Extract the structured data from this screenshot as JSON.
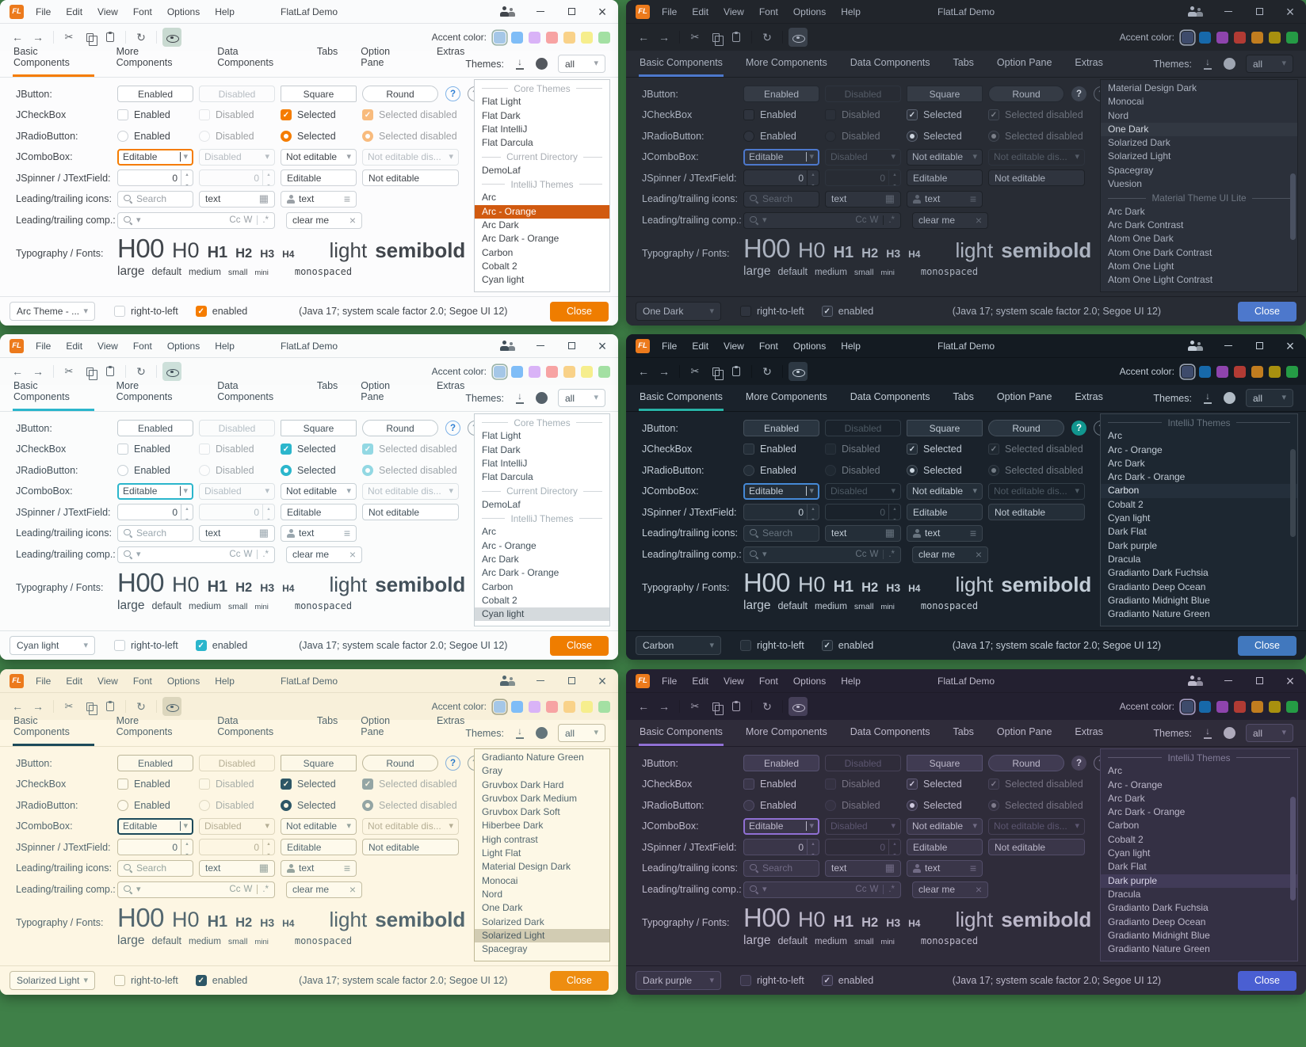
{
  "background": "#3f8048",
  "app": {
    "logo_text": "FL",
    "title": "FlatLaf Demo"
  },
  "menu": [
    "File",
    "Edit",
    "View",
    "Font",
    "Options",
    "Help"
  ],
  "toolbar": {
    "accent_label": "Accent color:"
  },
  "tabs": [
    "Basic Components",
    "More Components",
    "Data Components",
    "Tabs",
    "Option Pane",
    "Extras"
  ],
  "active_tab": "Basic Components",
  "themes_header": {
    "label": "Themes:",
    "filter": "all"
  },
  "form": {
    "labels": [
      "JButton:",
      "JCheckBox",
      "JRadioButton:",
      "JComboBox:",
      "JSpinner / JTextField:",
      "Leading/trailing icons:",
      "Leading/trailing comp.:",
      "Typography / Fonts:"
    ],
    "jbutton": [
      "Enabled",
      "Disabled",
      "Square",
      "Round"
    ],
    "checks": [
      "Enabled",
      "Disabled",
      "Selected",
      "Selected disabled"
    ],
    "combos": [
      "Editable",
      "Disabled",
      "Not editable",
      "Not editable dis..."
    ],
    "spinners": [
      "0",
      "0"
    ],
    "textfields": [
      "Editable",
      "Not editable"
    ],
    "search_placeholder": "Search",
    "icon_text": "text",
    "match_case": "Cc",
    "whole_word": "W",
    "regex": ".*",
    "clear_text": "clear me",
    "typography": {
      "headings": [
        "H00",
        "H0",
        "H1",
        "H2",
        "H3",
        "H4"
      ],
      "light": "light",
      "semibold": "semibold",
      "sizes": [
        "large",
        "default",
        "medium",
        "small",
        "mini"
      ],
      "monospaced": "monospaced"
    }
  },
  "statusbar": {
    "rtl": "right-to-left",
    "enabled": "enabled",
    "info": "(Java 17;  system scale factor 2.0; Segoe UI 12)",
    "close": "Close"
  },
  "swatch_sets": {
    "light": [
      "#a5c7e7",
      "#7fbdf7",
      "#d9b3f7",
      "#f7a3a3",
      "#f9d289",
      "#f6ee8d",
      "#a3e0a3"
    ],
    "dark": [
      "#3e4b6b",
      "#1769aa",
      "#8e44ad",
      "#b23b34",
      "#c17d1f",
      "#a8900f",
      "#259b45"
    ]
  },
  "panels": [
    {
      "name": "Arc - Orange",
      "combo_value": "Arc Theme - ...",
      "variant": "light",
      "colors": {
        "bar": "#fafbfc",
        "content": "#fcfcfd",
        "text": "#41464c",
        "muted": "#9aa0a6",
        "border": "#e2e5e8",
        "field": "#ffffff",
        "fieldb": "#cdd2d7",
        "btnbg": "#ffffff",
        "btnb": "#c6ccd1",
        "accent": "#f57c00",
        "selbg": "#d15a10",
        "seltx": "#ffffff",
        "close": "#ef7d00",
        "closetx": "#ffffff",
        "chkfill": "#f57c00",
        "chkglyph": "#ffffff",
        "chkb": "#f57c00",
        "focus": "#f57c00",
        "h1fg": "#2e7fd4",
        "h1bg": "transparent",
        "h1bd": "#7fb3e8",
        "eyebg": "#c9dad1",
        "disab": "#b6bcc2",
        "disb": "#e0e4e7",
        "listbg": "#ffffff",
        "listbd": "#c8cdd2",
        "sep": "#a9aeb4",
        "thumb": "transparent",
        "swring": "#9ab3a9"
      },
      "list": {
        "selected": "Arc - Orange",
        "scrollbar": false,
        "thumb_top": 0,
        "thumb_height": 0,
        "items": [
          {
            "type": "separator",
            "label": "Core Themes"
          },
          {
            "type": "theme",
            "label": "Flat Light"
          },
          {
            "type": "theme",
            "label": "Flat Dark"
          },
          {
            "type": "theme",
            "label": "Flat IntelliJ"
          },
          {
            "type": "theme",
            "label": "Flat Darcula"
          },
          {
            "type": "separator",
            "label": "Current Directory"
          },
          {
            "type": "theme",
            "label": "DemoLaf"
          },
          {
            "type": "separator",
            "label": "IntelliJ Themes"
          },
          {
            "type": "theme",
            "label": "Arc"
          },
          {
            "type": "theme",
            "label": "Arc - Orange"
          },
          {
            "type": "theme",
            "label": "Arc Dark"
          },
          {
            "type": "theme",
            "label": "Arc Dark - Orange"
          },
          {
            "type": "theme",
            "label": "Carbon"
          },
          {
            "type": "theme",
            "label": "Cobalt 2"
          },
          {
            "type": "theme",
            "label": "Cyan light"
          }
        ]
      }
    },
    {
      "name": "One Dark",
      "combo_value": "One Dark",
      "variant": "dark",
      "colors": {
        "bar": "#21252b",
        "content": "#282c34",
        "text": "#abb2bf",
        "muted": "#5f6672",
        "border": "#1b1e24",
        "field": "#2f343e",
        "fieldb": "#1d2127",
        "btnbg": "#353b45",
        "btnb": "#232830",
        "accent": "#4d78cc",
        "selbg": "#323842",
        "seltx": "#d5dae2",
        "close": "#4d78cc",
        "closetx": "#ffffff",
        "chkfill": "#2f343e",
        "chkglyph": "#cdd4de",
        "chkb": "#5a6270",
        "focus": "#4d78cc",
        "h1fg": "#ccd2dc",
        "h1bg": "#3d4450",
        "h1bd": "transparent",
        "eyebg": "#3a414b",
        "disab": "#555c67",
        "disb": "#2e343e",
        "listbg": "#2b303a",
        "listbd": "#1d2127",
        "sep": "#6e7682",
        "thumb": "#4a5161",
        "swring": "#9aa3b2"
      },
      "list": {
        "selected": "One Dark",
        "scrollbar": true,
        "thumb_top": 0.44,
        "thumb_height": 0.32,
        "items": [
          {
            "type": "theme",
            "label": "Material Design Dark"
          },
          {
            "type": "theme",
            "label": "Monocai"
          },
          {
            "type": "theme",
            "label": "Nord"
          },
          {
            "type": "theme",
            "label": "One Dark"
          },
          {
            "type": "theme",
            "label": "Solarized Dark"
          },
          {
            "type": "theme",
            "label": "Solarized Light"
          },
          {
            "type": "theme",
            "label": "Spacegray"
          },
          {
            "type": "theme",
            "label": "Vuesion"
          },
          {
            "type": "separator",
            "label": "Material Theme UI Lite"
          },
          {
            "type": "theme",
            "label": "Arc Dark"
          },
          {
            "type": "theme",
            "label": "Arc Dark Contrast"
          },
          {
            "type": "theme",
            "label": "Atom One Dark"
          },
          {
            "type": "theme",
            "label": "Atom One Dark Contrast"
          },
          {
            "type": "theme",
            "label": "Atom One Light"
          },
          {
            "type": "theme",
            "label": "Atom One Light Contrast"
          }
        ]
      }
    },
    {
      "name": "Cyan light",
      "combo_value": "Cyan light",
      "variant": "light",
      "colors": {
        "bar": "#fafbfb",
        "content": "#fbfcfc",
        "text": "#42505a",
        "muted": "#9aa7af",
        "border": "#e0e5e8",
        "field": "#ffffff",
        "fieldb": "#c7d0d5",
        "btnbg": "#ffffff",
        "btnb": "#c0cacf",
        "accent": "#2bb6cc",
        "selbg": "#d5dadd",
        "seltx": "#3c4850",
        "close": "#ef7d00",
        "closetx": "#ffffff",
        "chkfill": "#2bb6cc",
        "chkglyph": "#ffffff",
        "chkb": "#2bb6cc",
        "focus": "#2bb6cc",
        "h1fg": "#2e7fd4",
        "h1bg": "transparent",
        "h1bd": "#7fb3e8",
        "eyebg": "#cde0da",
        "disab": "#b4bec5",
        "disb": "#dde3e6",
        "listbg": "#ffffff",
        "listbd": "#c5ced3",
        "sep": "#a6b1b8",
        "thumb": "transparent",
        "swring": "#9ab3a9"
      },
      "list": {
        "selected": "Cyan light",
        "scrollbar": false,
        "thumb_top": 0,
        "thumb_height": 0,
        "items": [
          {
            "type": "separator",
            "label": "Core Themes"
          },
          {
            "type": "theme",
            "label": "Flat Light"
          },
          {
            "type": "theme",
            "label": "Flat Dark"
          },
          {
            "type": "theme",
            "label": "Flat IntelliJ"
          },
          {
            "type": "theme",
            "label": "Flat Darcula"
          },
          {
            "type": "separator",
            "label": "Current Directory"
          },
          {
            "type": "theme",
            "label": "DemoLaf"
          },
          {
            "type": "separator",
            "label": "IntelliJ Themes"
          },
          {
            "type": "theme",
            "label": "Arc"
          },
          {
            "type": "theme",
            "label": "Arc - Orange"
          },
          {
            "type": "theme",
            "label": "Arc Dark"
          },
          {
            "type": "theme",
            "label": "Arc Dark - Orange"
          },
          {
            "type": "theme",
            "label": "Carbon"
          },
          {
            "type": "theme",
            "label": "Cobalt 2"
          },
          {
            "type": "theme",
            "label": "Cyan light"
          }
        ]
      }
    },
    {
      "name": "Carbon",
      "combo_value": "Carbon",
      "variant": "dark",
      "colors": {
        "bar": "#141b22",
        "content": "#1a222b",
        "text": "#c2ccd6",
        "muted": "#68747f",
        "border": "#0e1419",
        "field": "#242e38",
        "fieldb": "#3b454f",
        "btnbg": "#2a3540",
        "btnb": "#45505b",
        "accent": "#28b2a6",
        "selbg": "#242f3b",
        "seltx": "#e2e9f0",
        "close": "#4178be",
        "closetx": "#ffffff",
        "chkfill": "#242e38",
        "chkglyph": "#ccd6df",
        "chkb": "#4a545e",
        "focus": "#4589d6",
        "h1fg": "#ffffff",
        "h1bg": "#11968f",
        "h1bd": "transparent",
        "eyebg": "#2d3843",
        "disab": "#4e5a64",
        "disb": "#323d47",
        "listbg": "#1d2731",
        "listbd": "#3b454f",
        "sep": "#66727d",
        "thumb": "#3b454f",
        "swring": "#9aa3b2"
      },
      "list": {
        "selected": "Carbon",
        "scrollbar": true,
        "thumb_top": 0.16,
        "thumb_height": 0.42,
        "items": [
          {
            "type": "separator",
            "label": "IntelliJ Themes"
          },
          {
            "type": "theme",
            "label": "Arc"
          },
          {
            "type": "theme",
            "label": "Arc - Orange"
          },
          {
            "type": "theme",
            "label": "Arc Dark"
          },
          {
            "type": "theme",
            "label": "Arc Dark - Orange"
          },
          {
            "type": "theme",
            "label": "Carbon"
          },
          {
            "type": "theme",
            "label": "Cobalt 2"
          },
          {
            "type": "theme",
            "label": "Cyan light"
          },
          {
            "type": "theme",
            "label": "Dark Flat"
          },
          {
            "type": "theme",
            "label": "Dark purple"
          },
          {
            "type": "theme",
            "label": "Dracula"
          },
          {
            "type": "theme",
            "label": "Gradianto Dark Fuchsia"
          },
          {
            "type": "theme",
            "label": "Gradianto Deep Ocean"
          },
          {
            "type": "theme",
            "label": "Gradianto Midnight Blue"
          },
          {
            "type": "theme",
            "label": "Gradianto Nature Green"
          }
        ]
      }
    },
    {
      "name": "Solarized Light",
      "combo_value": "Solarized Light",
      "variant": "light",
      "colors": {
        "bar": "#f8f0da",
        "content": "#fdf6e3",
        "text": "#53676f",
        "muted": "#96a49e",
        "border": "#e7e0c8",
        "field": "#fefaec",
        "fieldb": "#c3bda1",
        "btnbg": "#fdf8e8",
        "btnb": "#bcb699",
        "accent": "#1c4a5a",
        "selbg": "#d2ccb3",
        "seltx": "#4a5b62",
        "close": "#ee8d10",
        "closetx": "#ffffff",
        "chkfill": "#2d5666",
        "chkglyph": "#fdf6e3",
        "chkb": "#2d5666",
        "focus": "#1c4a5a",
        "h1fg": "#2878c8",
        "h1bg": "transparent",
        "h1bd": "#84b0dc",
        "eyebg": "#dcd6bd",
        "disab": "#b5ae94",
        "disb": "#ddd6bd",
        "listbg": "#fdf8e6",
        "listbd": "#bfb895",
        "sep": "#a19c82",
        "thumb": "transparent",
        "swring": "#a8a88e"
      },
      "list": {
        "selected": "Solarized Light",
        "scrollbar": false,
        "thumb_top": 0,
        "thumb_height": 0,
        "items": [
          {
            "type": "theme",
            "label": "Gradianto Nature Green"
          },
          {
            "type": "theme",
            "label": "Gray"
          },
          {
            "type": "theme",
            "label": "Gruvbox Dark Hard"
          },
          {
            "type": "theme",
            "label": "Gruvbox Dark Medium"
          },
          {
            "type": "theme",
            "label": "Gruvbox Dark Soft"
          },
          {
            "type": "theme",
            "label": "Hiberbee Dark"
          },
          {
            "type": "theme",
            "label": "High contrast"
          },
          {
            "type": "theme",
            "label": "Light Flat"
          },
          {
            "type": "theme",
            "label": "Material Design Dark"
          },
          {
            "type": "theme",
            "label": "Monocai"
          },
          {
            "type": "theme",
            "label": "Nord"
          },
          {
            "type": "theme",
            "label": "One Dark"
          },
          {
            "type": "theme",
            "label": "Solarized Dark"
          },
          {
            "type": "theme",
            "label": "Solarized Light"
          },
          {
            "type": "theme",
            "label": "Spacegray"
          }
        ]
      }
    },
    {
      "name": "Dark purple",
      "combo_value": "Dark purple",
      "variant": "dark",
      "colors": {
        "bar": "#232030",
        "content": "#2f2c3a",
        "text": "#bcb8ca",
        "muted": "#716b85",
        "border": "#1e1b28",
        "field": "#3a3649",
        "fieldb": "#524d68",
        "btnbg": "#403b52",
        "btnb": "#575270",
        "accent": "#9070d4",
        "selbg": "#413b58",
        "seltx": "#d9d5e8",
        "close": "#4a5fd2",
        "closetx": "#ffffff",
        "chkfill": "#3a3649",
        "chkglyph": "#cfcade",
        "chkb": "#5f5a76",
        "focus": "#9070d4",
        "h1fg": "#cfcade",
        "h1bg": "#474158",
        "h1bd": "transparent",
        "eyebg": "#453f58",
        "disab": "#5c5670",
        "disb": "#464156",
        "listbg": "#343044",
        "listbd": "#4a4560",
        "sep": "#837d99",
        "thumb": "#565170",
        "swring": "#a39cc0"
      },
      "list": {
        "selected": "Dark purple",
        "scrollbar": true,
        "thumb_top": 0.22,
        "thumb_height": 0.5,
        "items": [
          {
            "type": "separator",
            "label": "IntelliJ Themes"
          },
          {
            "type": "theme",
            "label": "Arc"
          },
          {
            "type": "theme",
            "label": "Arc - Orange"
          },
          {
            "type": "theme",
            "label": "Arc Dark"
          },
          {
            "type": "theme",
            "label": "Arc Dark - Orange"
          },
          {
            "type": "theme",
            "label": "Carbon"
          },
          {
            "type": "theme",
            "label": "Cobalt 2"
          },
          {
            "type": "theme",
            "label": "Cyan light"
          },
          {
            "type": "theme",
            "label": "Dark Flat"
          },
          {
            "type": "theme",
            "label": "Dark purple"
          },
          {
            "type": "theme",
            "label": "Dracula"
          },
          {
            "type": "theme",
            "label": "Gradianto Dark Fuchsia"
          },
          {
            "type": "theme",
            "label": "Gradianto Deep Ocean"
          },
          {
            "type": "theme",
            "label": "Gradianto Midnight Blue"
          },
          {
            "type": "theme",
            "label": "Gradianto Nature Green"
          }
        ]
      }
    }
  ]
}
